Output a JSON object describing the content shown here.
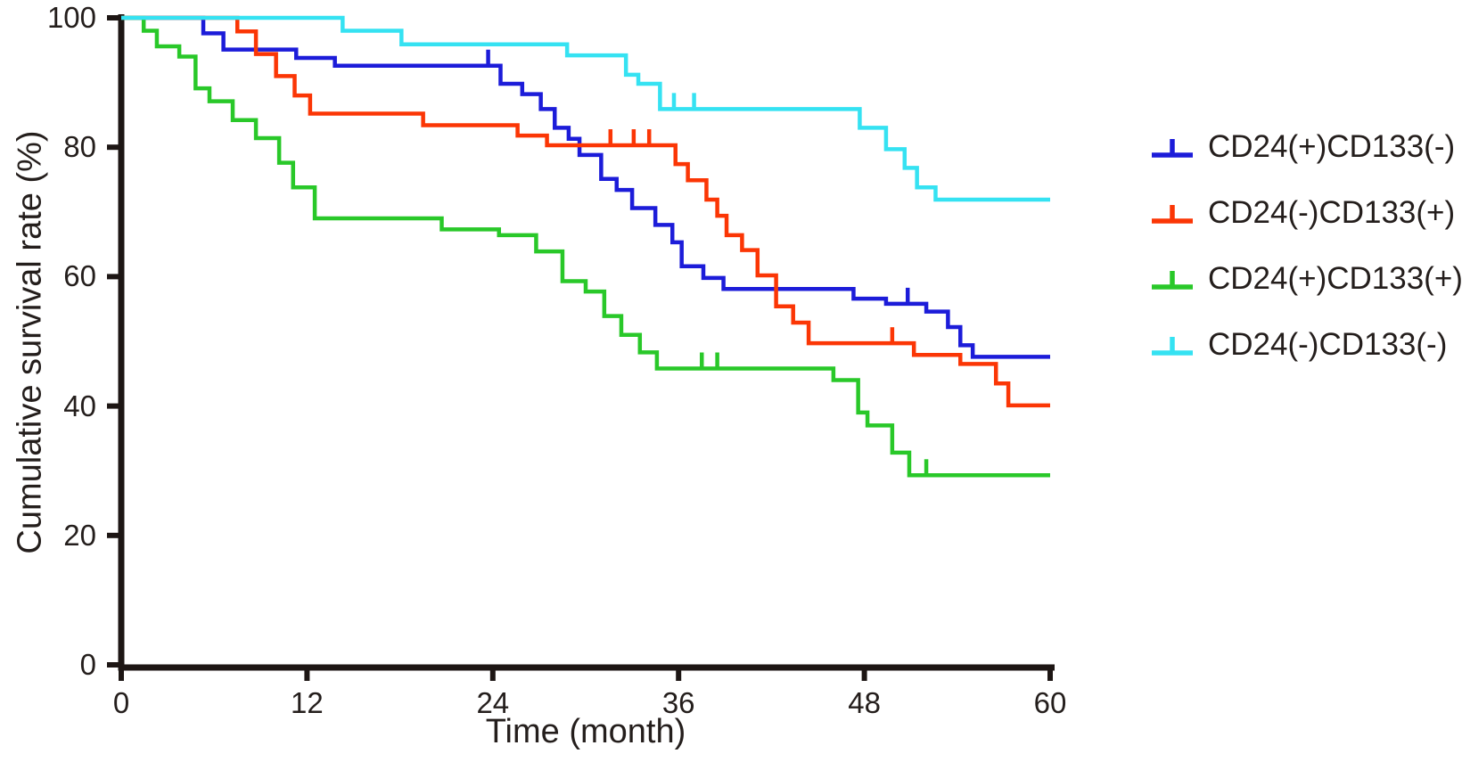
{
  "chart_data": {
    "type": "line",
    "subtype": "kaplan-meier-step-curves",
    "title": "",
    "x_axis": {
      "label": "Time (month)",
      "range": [
        0,
        60
      ],
      "ticks": [
        0,
        12,
        24,
        36,
        48,
        60
      ]
    },
    "y_axis": {
      "label": "Cumulative survival rate (%)",
      "range": [
        0,
        100
      ],
      "ticks": [
        0,
        20,
        40,
        60,
        80,
        100
      ]
    },
    "grid": "off",
    "axis_color": "#1d1614",
    "end_month": 60,
    "legend": {
      "position": "right",
      "marker": "censor-tick-symbol"
    },
    "series": [
      {
        "name": "CD24(+)CD133(-)",
        "color": "#1c1cd9",
        "steps": [
          [
            0,
            100
          ],
          [
            5.3,
            97.6
          ],
          [
            6.6,
            95.1
          ],
          [
            11.3,
            93.8
          ],
          [
            13.8,
            92.6
          ],
          [
            24.5,
            89.8
          ],
          [
            25.9,
            88.2
          ],
          [
            27.1,
            85.9
          ],
          [
            28.0,
            83.0
          ],
          [
            28.9,
            81.3
          ],
          [
            29.6,
            78.8
          ],
          [
            31.0,
            75.1
          ],
          [
            32.0,
            73.4
          ],
          [
            33.0,
            70.6
          ],
          [
            34.5,
            68.0
          ],
          [
            35.6,
            65.3
          ],
          [
            36.2,
            61.6
          ],
          [
            37.6,
            59.8
          ],
          [
            38.9,
            58.1
          ],
          [
            47.3,
            56.6
          ],
          [
            49.4,
            55.8
          ],
          [
            52.0,
            54.6
          ],
          [
            53.4,
            52.2
          ],
          [
            54.2,
            49.4
          ],
          [
            55.0,
            47.6
          ]
        ],
        "censor_marks": [
          [
            23.7,
            92.6
          ],
          [
            50.8,
            55.8
          ]
        ]
      },
      {
        "name": "CD24(-)CD133(+)",
        "color": "#fb3605",
        "steps": [
          [
            0,
            100
          ],
          [
            7.5,
            97.9
          ],
          [
            8.7,
            94.4
          ],
          [
            10.0,
            91.0
          ],
          [
            11.2,
            88.0
          ],
          [
            12.2,
            85.2
          ],
          [
            19.5,
            83.4
          ],
          [
            25.6,
            81.8
          ],
          [
            27.5,
            80.3
          ],
          [
            35.8,
            77.4
          ],
          [
            36.6,
            74.9
          ],
          [
            37.8,
            71.9
          ],
          [
            38.5,
            69.4
          ],
          [
            39.1,
            66.4
          ],
          [
            40.1,
            64.1
          ],
          [
            41.1,
            60.2
          ],
          [
            42.3,
            55.4
          ],
          [
            43.4,
            52.9
          ],
          [
            44.4,
            49.7
          ],
          [
            51.2,
            47.9
          ],
          [
            54.2,
            46.5
          ],
          [
            56.5,
            43.5
          ],
          [
            57.3,
            40.1
          ]
        ],
        "censor_marks": [
          [
            31.6,
            80.3
          ],
          [
            33.1,
            80.3
          ],
          [
            34.1,
            80.3
          ],
          [
            49.8,
            49.7
          ]
        ]
      },
      {
        "name": "CD24(+)CD133(+)",
        "color": "#29c829",
        "steps": [
          [
            0,
            100
          ],
          [
            1.45,
            98.0
          ],
          [
            2.3,
            95.6
          ],
          [
            3.75,
            94.0
          ],
          [
            4.8,
            89.1
          ],
          [
            5.7,
            87.1
          ],
          [
            7.2,
            84.2
          ],
          [
            8.7,
            81.4
          ],
          [
            10.2,
            77.6
          ],
          [
            11.1,
            73.8
          ],
          [
            12.5,
            69.0
          ],
          [
            20.7,
            67.3
          ],
          [
            24.4,
            66.4
          ],
          [
            26.8,
            63.9
          ],
          [
            28.5,
            59.3
          ],
          [
            30.0,
            57.7
          ],
          [
            31.2,
            53.9
          ],
          [
            32.3,
            51.0
          ],
          [
            33.5,
            48.3
          ],
          [
            34.6,
            45.8
          ],
          [
            46.0,
            44.0
          ],
          [
            47.6,
            39.0
          ],
          [
            48.2,
            37.0
          ],
          [
            49.8,
            32.8
          ],
          [
            50.9,
            29.3
          ]
        ],
        "censor_marks": [
          [
            37.5,
            45.8
          ],
          [
            38.5,
            45.8
          ],
          [
            52.0,
            29.3
          ]
        ]
      },
      {
        "name": "CD24(-)CD133(-)",
        "color": "#35e2f2",
        "steps": [
          [
            0,
            100
          ],
          [
            14.3,
            98.0
          ],
          [
            18.1,
            95.9
          ],
          [
            28.8,
            94.2
          ],
          [
            32.6,
            91.2
          ],
          [
            33.4,
            89.8
          ],
          [
            34.8,
            85.9
          ],
          [
            47.7,
            83.0
          ],
          [
            49.4,
            79.7
          ],
          [
            50.6,
            76.8
          ],
          [
            51.4,
            73.8
          ],
          [
            52.6,
            71.9
          ]
        ],
        "censor_marks": [
          [
            35.7,
            85.9
          ],
          [
            37.0,
            85.9
          ]
        ]
      }
    ]
  }
}
